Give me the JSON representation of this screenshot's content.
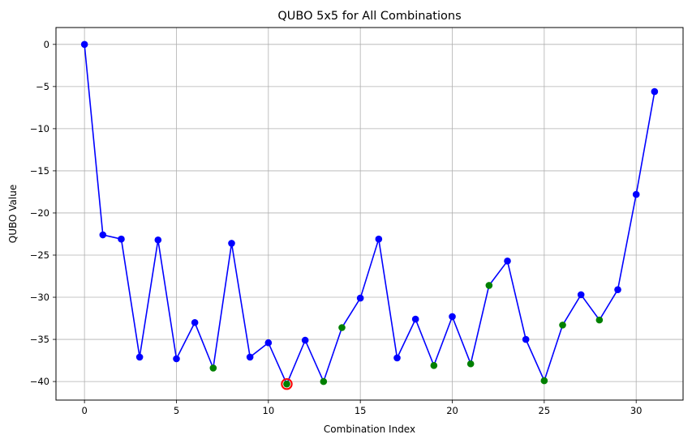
{
  "chart_data": {
    "type": "line",
    "title": "QUBO 5x5 for All Combinations",
    "xlabel": "Combination Index",
    "ylabel": "QUBO Value",
    "xlim": [
      -1.55,
      32.55
    ],
    "ylim": [
      -42.2,
      2.0
    ],
    "xticks": [
      0,
      5,
      10,
      15,
      20,
      25,
      30
    ],
    "yticks": [
      0,
      -5,
      -10,
      -15,
      -20,
      -25,
      -30,
      -35,
      -40
    ],
    "grid": true,
    "line_color": "#0000ff",
    "series": [
      {
        "x": [
          0,
          1,
          2,
          3,
          4,
          5,
          6,
          7,
          8,
          9,
          10,
          11,
          12,
          13,
          14,
          15,
          16,
          17,
          18,
          19,
          20,
          21,
          22,
          23,
          24,
          25,
          26,
          27,
          28,
          29,
          30,
          31
        ],
        "values": [
          0,
          -22.6,
          -23.1,
          -37.1,
          -23.2,
          -37.3,
          -33.0,
          -38.4,
          -23.6,
          -37.1,
          -35.4,
          -40.3,
          -35.1,
          -40.0,
          -33.6,
          -30.1,
          -23.1,
          -37.2,
          -32.6,
          -38.1,
          -32.3,
          -37.9,
          -28.6,
          -25.7,
          -35.0,
          -39.9,
          -33.3,
          -29.7,
          -32.7,
          -29.1,
          -17.8,
          -5.6
        ],
        "marker_colors": [
          "#0000ff",
          "#0000ff",
          "#0000ff",
          "#0000ff",
          "#0000ff",
          "#0000ff",
          "#0000ff",
          "#008000",
          "#0000ff",
          "#0000ff",
          "#0000ff",
          "#008000",
          "#0000ff",
          "#008000",
          "#008000",
          "#0000ff",
          "#0000ff",
          "#0000ff",
          "#0000ff",
          "#008000",
          "#0000ff",
          "#008000",
          "#008000",
          "#0000ff",
          "#0000ff",
          "#008000",
          "#008000",
          "#0000ff",
          "#008000",
          "#0000ff",
          "#0000ff",
          "#0000ff"
        ]
      }
    ],
    "highlight": {
      "x": 11,
      "y": -40.3,
      "edge_color": "#ff0000"
    }
  }
}
